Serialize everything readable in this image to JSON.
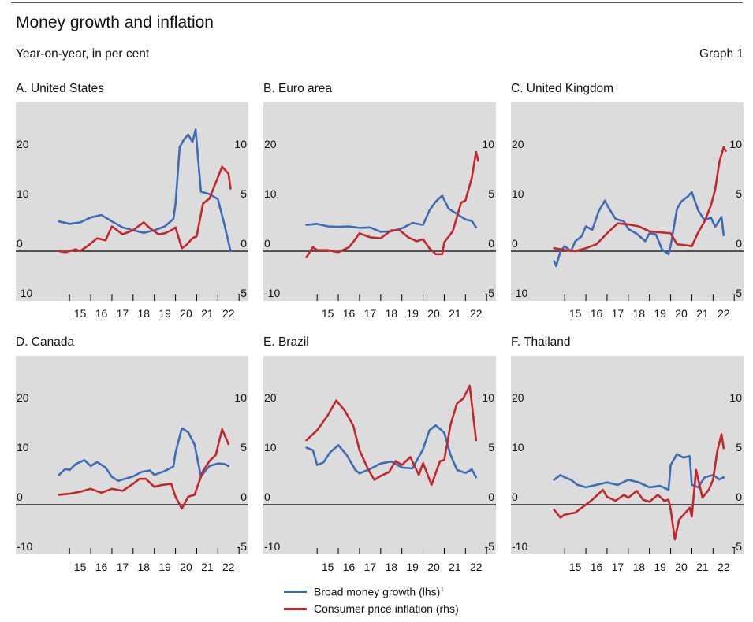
{
  "header": {
    "title": "Money growth and inflation",
    "subtitle": "Year-on-year, in per cent",
    "graph_no": "Graph 1"
  },
  "colors": {
    "money": "#3d6cb5",
    "cpi": "#c1272d",
    "panel_bg": "#dcdcdc",
    "zero_line": "#000000",
    "text": "#111111"
  },
  "legend": {
    "money_label": "Broad money growth (lhs)",
    "money_footnote": "1",
    "cpi_label": "Consumer price inflation (rhs)"
  },
  "chart_data": [
    {
      "panel": "A. United States",
      "type": "line",
      "x_ticks": [
        "15",
        "16",
        "17",
        "18",
        "19",
        "20",
        "21",
        "22"
      ],
      "x_range": [
        2014,
        2023
      ],
      "y_left": {
        "range": [
          -10,
          30
        ],
        "ticks": [
          -10,
          0,
          10,
          20
        ]
      },
      "y_right": {
        "range": [
          -5,
          15
        ],
        "ticks": [
          -5,
          0,
          5,
          10
        ]
      },
      "series": [
        {
          "name": "Broad money growth (lhs)",
          "axis": "left",
          "x": [
            2014.5,
            2015.0,
            2015.5,
            2016.0,
            2016.5,
            2017.0,
            2017.5,
            2018.0,
            2018.5,
            2019.0,
            2019.5,
            2019.9,
            2020.0,
            2020.2,
            2020.4,
            2020.6,
            2020.8,
            2020.95,
            2021.2,
            2021.6,
            2022.0,
            2022.3,
            2022.6
          ],
          "y": [
            6.0,
            5.5,
            5.8,
            6.8,
            7.3,
            6.0,
            4.8,
            4.2,
            3.7,
            4.2,
            5.0,
            6.5,
            9.5,
            21.0,
            22.5,
            23.5,
            22.0,
            24.5,
            12.0,
            11.5,
            10.5,
            5.5,
            0.0
          ]
        },
        {
          "name": "Consumer price inflation (rhs)",
          "axis": "right",
          "x": [
            2014.5,
            2014.8,
            2015.0,
            2015.3,
            2015.5,
            2015.9,
            2016.3,
            2016.7,
            2017.0,
            2017.5,
            2018.0,
            2018.3,
            2018.5,
            2018.8,
            2019.2,
            2019.5,
            2019.8,
            2020.0,
            2020.3,
            2020.5,
            2020.8,
            2021.0,
            2021.3,
            2021.6,
            2021.9,
            2022.2,
            2022.5,
            2022.6
          ],
          "y": [
            0.0,
            -0.1,
            0.0,
            0.2,
            0.0,
            0.6,
            1.3,
            1.1,
            2.5,
            1.7,
            2.1,
            2.6,
            2.9,
            2.3,
            1.7,
            1.8,
            2.1,
            2.4,
            0.3,
            0.6,
            1.3,
            1.5,
            4.8,
            5.3,
            6.9,
            8.5,
            7.8,
            6.3
          ]
        }
      ]
    },
    {
      "panel": "B. Euro area",
      "type": "line",
      "x_ticks": [
        "15",
        "16",
        "17",
        "18",
        "19",
        "20",
        "21",
        "22"
      ],
      "x_range": [
        2014,
        2023
      ],
      "y_left": {
        "range": [
          -10,
          30
        ],
        "ticks": [
          -10,
          0,
          10,
          20
        ]
      },
      "y_right": {
        "range": [
          -5,
          15
        ],
        "ticks": [
          -5,
          0,
          5,
          10
        ]
      },
      "series": [
        {
          "name": "Broad money growth (lhs)",
          "axis": "left",
          "x": [
            2014.5,
            2015.0,
            2015.5,
            2016.0,
            2016.5,
            2017.0,
            2017.5,
            2018.0,
            2018.5,
            2019.0,
            2019.5,
            2020.0,
            2020.3,
            2020.6,
            2020.9,
            2021.2,
            2021.6,
            2022.0,
            2022.3,
            2022.5
          ],
          "y": [
            5.3,
            5.5,
            5.0,
            4.9,
            5.0,
            4.7,
            4.8,
            3.9,
            4.0,
            4.6,
            5.7,
            5.3,
            8.2,
            10.0,
            11.2,
            8.6,
            7.5,
            6.4,
            6.1,
            4.8
          ]
        },
        {
          "name": "Consumer price inflation (rhs)",
          "axis": "right",
          "x": [
            2014.5,
            2014.8,
            2015.0,
            2015.5,
            2016.0,
            2016.5,
            2016.8,
            2017.0,
            2017.5,
            2018.0,
            2018.5,
            2018.9,
            2019.3,
            2019.7,
            2020.0,
            2020.3,
            2020.6,
            2020.9,
            2021.0,
            2021.4,
            2021.8,
            2022.0,
            2022.3,
            2022.5,
            2022.6
          ],
          "y": [
            -0.6,
            0.4,
            0.1,
            0.1,
            -0.1,
            0.4,
            1.2,
            1.8,
            1.4,
            1.3,
            2.1,
            2.1,
            1.4,
            1.0,
            1.2,
            0.3,
            -0.3,
            -0.3,
            0.9,
            2.0,
            4.9,
            5.1,
            7.4,
            10.0,
            9.1
          ]
        }
      ]
    },
    {
      "panel": "C. United Kingdom",
      "type": "line",
      "x_ticks": [
        "15",
        "16",
        "17",
        "18",
        "19",
        "20",
        "21",
        "22"
      ],
      "x_range": [
        2014,
        2023
      ],
      "y_left": {
        "range": [
          -10,
          30
        ],
        "ticks": [
          -10,
          0,
          10,
          20
        ]
      },
      "y_right": {
        "range": [
          -5,
          15
        ],
        "ticks": [
          -5,
          0,
          5,
          10
        ]
      },
      "series": [
        {
          "name": "Broad money growth (lhs)",
          "axis": "left",
          "x": [
            2014.5,
            2014.6,
            2014.8,
            2015.0,
            2015.3,
            2015.5,
            2015.8,
            2016.0,
            2016.3,
            2016.6,
            2016.9,
            2017.0,
            2017.4,
            2017.8,
            2018.0,
            2018.4,
            2018.8,
            2019.0,
            2019.3,
            2019.6,
            2019.9,
            2020.0,
            2020.3,
            2020.5,
            2020.8,
            2021.0,
            2021.3,
            2021.6,
            2021.9,
            2022.1,
            2022.4,
            2022.5
          ],
          "y": [
            -2.0,
            -3.0,
            0.0,
            1.0,
            0.0,
            2.0,
            3.0,
            5.0,
            4.3,
            8.0,
            10.2,
            9.3,
            6.5,
            6.0,
            4.5,
            3.5,
            2.0,
            3.6,
            3.4,
            0.3,
            -0.6,
            1.1,
            8.5,
            10.0,
            11.0,
            11.9,
            8.2,
            6.2,
            6.8,
            4.9,
            6.9,
            3.2
          ]
        },
        {
          "name": "Consumer price inflation (rhs)",
          "axis": "right",
          "x": [
            2014.5,
            2014.8,
            2015.0,
            2015.5,
            2016.0,
            2016.5,
            2017.0,
            2017.5,
            2018.0,
            2018.5,
            2019.0,
            2019.5,
            2020.0,
            2020.3,
            2020.7,
            2021.0,
            2021.3,
            2021.6,
            2021.9,
            2022.1,
            2022.3,
            2022.5,
            2022.6
          ],
          "y": [
            0.3,
            0.2,
            0.1,
            0.0,
            0.3,
            0.7,
            1.8,
            2.8,
            2.7,
            2.5,
            2.0,
            1.9,
            1.8,
            0.7,
            0.6,
            0.5,
            1.9,
            3.0,
            4.6,
            6.2,
            9.0,
            10.5,
            10.1
          ]
        }
      ]
    },
    {
      "panel": "D. Canada",
      "type": "line",
      "x_ticks": [
        "15",
        "16",
        "17",
        "18",
        "19",
        "20",
        "21",
        "22"
      ],
      "x_range": [
        2014,
        2023
      ],
      "y_left": {
        "range": [
          -10,
          30
        ],
        "ticks": [
          -10,
          0,
          10,
          20
        ]
      },
      "y_right": {
        "range": [
          -5,
          15
        ],
        "ticks": [
          -5,
          0,
          5,
          10
        ]
      },
      "series": [
        {
          "name": "Broad money growth (lhs)",
          "axis": "left",
          "x": [
            2014.5,
            2014.8,
            2015.0,
            2015.3,
            2015.7,
            2016.0,
            2016.3,
            2016.7,
            2017.0,
            2017.3,
            2017.6,
            2018.0,
            2018.4,
            2018.8,
            2019.0,
            2019.5,
            2019.9,
            2020.0,
            2020.3,
            2020.6,
            2020.9,
            2021.2,
            2021.6,
            2022.0,
            2022.3,
            2022.5
          ],
          "y": [
            6.0,
            7.2,
            7.0,
            8.2,
            9.0,
            7.8,
            8.6,
            7.5,
            5.6,
            4.8,
            5.2,
            5.7,
            6.6,
            6.9,
            6.0,
            6.8,
            7.7,
            10.5,
            15.4,
            14.6,
            12.1,
            5.7,
            7.8,
            8.3,
            8.2,
            7.8
          ]
        },
        {
          "name": "Consumer price inflation (rhs)",
          "axis": "right",
          "x": [
            2014.5,
            2015.0,
            2015.5,
            2016.0,
            2016.5,
            2017.0,
            2017.5,
            2018.0,
            2018.3,
            2018.6,
            2019.0,
            2019.4,
            2019.8,
            2020.0,
            2020.3,
            2020.6,
            2020.9,
            2021.0,
            2021.3,
            2021.6,
            2021.9,
            2022.2,
            2022.5
          ],
          "y": [
            1.0,
            1.1,
            1.3,
            1.6,
            1.2,
            1.6,
            1.4,
            2.1,
            2.6,
            2.6,
            1.8,
            2.0,
            2.1,
            0.8,
            -0.4,
            0.8,
            1.0,
            1.6,
            3.4,
            4.4,
            5.0,
            7.6,
            6.1
          ]
        }
      ]
    },
    {
      "panel": "E. Brazil",
      "type": "line",
      "x_ticks": [
        "15",
        "16",
        "17",
        "18",
        "19",
        "20",
        "21",
        "22"
      ],
      "x_range": [
        2014,
        2023
      ],
      "y_left": {
        "range": [
          -10,
          30
        ],
        "ticks": [
          -10,
          0,
          10,
          20
        ]
      },
      "y_right": {
        "range": [
          -5,
          15
        ],
        "ticks": [
          -5,
          0,
          5,
          10
        ]
      },
      "series": [
        {
          "name": "Broad money growth (lhs)",
          "axis": "left",
          "x": [
            2014.5,
            2014.8,
            2015.0,
            2015.3,
            2015.6,
            2016.0,
            2016.4,
            2016.8,
            2017.0,
            2017.5,
            2018.0,
            2018.5,
            2019.0,
            2019.5,
            2020.0,
            2020.3,
            2020.6,
            2021.0,
            2021.3,
            2021.6,
            2022.0,
            2022.3,
            2022.5
          ],
          "y": [
            11.5,
            11.0,
            8.0,
            8.5,
            10.5,
            12.0,
            10.0,
            7.0,
            6.3,
            7.2,
            8.3,
            8.7,
            7.5,
            7.3,
            11.2,
            15.0,
            16.0,
            14.5,
            10.0,
            7.0,
            6.4,
            7.1,
            5.5
          ]
        },
        {
          "name": "Consumer price inflation (rhs)",
          "axis": "right",
          "x": [
            2014.5,
            2015.0,
            2015.5,
            2015.9,
            2016.3,
            2016.7,
            2017.0,
            2017.4,
            2017.7,
            2018.0,
            2018.4,
            2018.7,
            2019.0,
            2019.4,
            2019.8,
            2020.0,
            2020.4,
            2020.8,
            2021.0,
            2021.3,
            2021.6,
            2021.9,
            2022.2,
            2022.5
          ],
          "y": [
            6.5,
            7.5,
            9.0,
            10.5,
            9.5,
            8.0,
            5.5,
            3.6,
            2.5,
            2.9,
            3.3,
            4.4,
            4.0,
            4.8,
            3.0,
            4.2,
            2.0,
            4.4,
            4.5,
            8.1,
            10.2,
            10.7,
            12.0,
            6.5
          ]
        }
      ]
    },
    {
      "panel": "F. Thailand",
      "type": "line",
      "x_ticks": [
        "15",
        "16",
        "17",
        "18",
        "19",
        "20",
        "21",
        "22"
      ],
      "x_range": [
        2014,
        2023
      ],
      "y_left": {
        "range": [
          -10,
          30
        ],
        "ticks": [
          -10,
          0,
          10,
          20
        ]
      },
      "y_right": {
        "range": [
          -5,
          15
        ],
        "ticks": [
          -5,
          0,
          5,
          10
        ]
      },
      "series": [
        {
          "name": "Broad money growth (lhs)",
          "axis": "left",
          "x": [
            2014.5,
            2014.8,
            2015.0,
            2015.3,
            2015.6,
            2016.0,
            2016.5,
            2017.0,
            2017.5,
            2018.0,
            2018.5,
            2019.0,
            2019.5,
            2019.9,
            2020.0,
            2020.3,
            2020.6,
            2020.9,
            2021.0,
            2021.3,
            2021.6,
            2022.0,
            2022.3,
            2022.5
          ],
          "y": [
            5.0,
            6.0,
            5.5,
            5.0,
            4.0,
            3.5,
            4.0,
            4.5,
            4.0,
            5.0,
            4.5,
            3.5,
            3.8,
            3.0,
            8.0,
            10.2,
            9.5,
            9.8,
            4.0,
            3.5,
            5.5,
            6.0,
            5.1,
            5.5
          ]
        },
        {
          "name": "Consumer price inflation (rhs)",
          "axis": "right",
          "x": [
            2014.5,
            2014.8,
            2015.0,
            2015.5,
            2016.0,
            2016.3,
            2016.8,
            2017.0,
            2017.4,
            2017.8,
            2018.0,
            2018.4,
            2018.7,
            2019.0,
            2019.4,
            2019.7,
            2019.9,
            2020.0,
            2020.2,
            2020.4,
            2020.7,
            2020.9,
            2021.0,
            2021.2,
            2021.5,
            2021.8,
            2022.0,
            2022.2,
            2022.4,
            2022.5
          ],
          "y": [
            -0.5,
            -1.3,
            -1.0,
            -0.8,
            0.0,
            0.5,
            1.5,
            0.8,
            0.4,
            1.0,
            0.7,
            1.4,
            0.5,
            0.3,
            1.0,
            0.4,
            0.5,
            -0.5,
            -3.5,
            -1.5,
            -0.8,
            -0.3,
            -1.2,
            3.5,
            0.7,
            1.5,
            2.5,
            5.4,
            7.1,
            5.7
          ]
        }
      ]
    }
  ]
}
